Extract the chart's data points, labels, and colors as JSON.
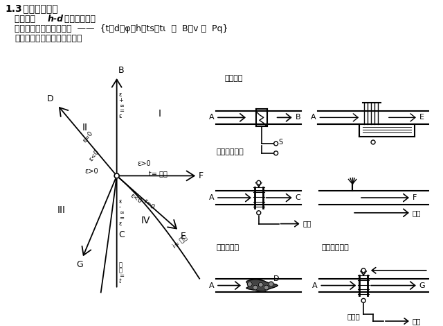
{
  "bg_color": "#ffffff",
  "text_color": "#000000",
  "title_bold": "1.3",
  "title_rest": " 焓湿图的应用",
  "line1a": "湿空气的  ",
  "line1b": "h-d",
  "line1c": " 图可以表示：",
  "line2": "空气的状态和各状态参数  ——  {t，d，φ，h，ts，tι  ，  B，v ，  Pq}",
  "line3": "湿空气状态的变化过程如下："
}
